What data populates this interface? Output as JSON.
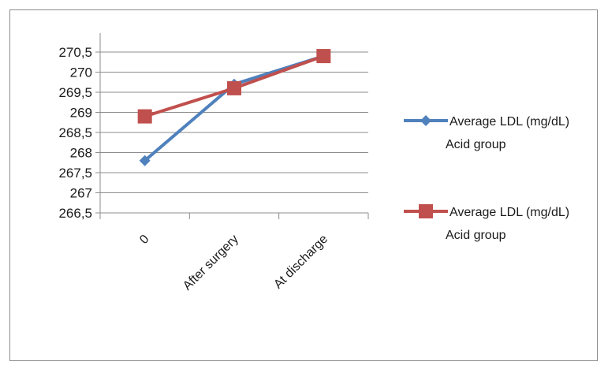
{
  "chart_data": {
    "type": "line",
    "categories": [
      "0",
      "After surgery",
      "At discharge"
    ],
    "series": [
      {
        "name": "Average LDL (mg/dL)\nAcid group",
        "values": [
          267.8,
          269.7,
          270.4
        ],
        "color": "#4F81BD",
        "marker": "diamond"
      },
      {
        "name": "Average LDL (mg/dL)\nAcid group",
        "values": [
          268.9,
          269.6,
          270.4
        ],
        "color": "#C0504D",
        "marker": "square"
      }
    ],
    "y_ticks": [
      "266,5",
      "267",
      "267,5",
      "268",
      "268,5",
      "269",
      "269,5",
      "270",
      "270,5"
    ],
    "ylim": [
      266.5,
      270.5
    ],
    "grid": true,
    "legend": "right",
    "title": "",
    "xlabel": "",
    "ylabel": ""
  }
}
